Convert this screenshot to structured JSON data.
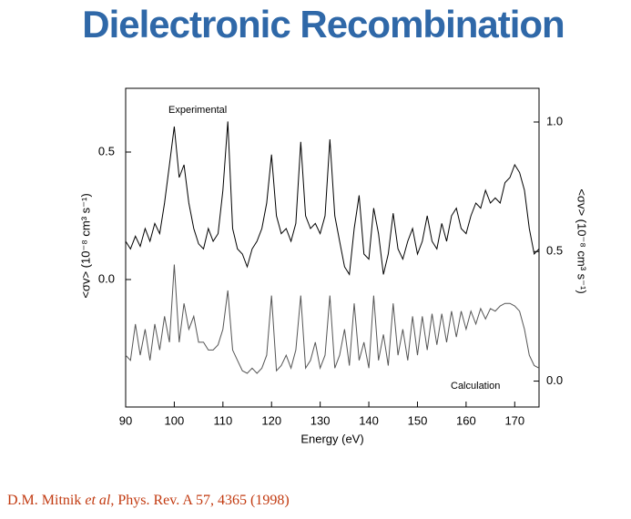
{
  "title": "Dielectronic Recombination",
  "citation": [
    "D.M. Mitnik ",
    "et al",
    ", Phys. Rev. A 57, 4365 (1998)"
  ],
  "chart_data": {
    "type": "line",
    "x_label": "Energy (eV)",
    "y_label": "<σv> (10⁻⁸ cm³ s⁻¹)",
    "y2_label": "<σv> (10⁻⁸ cm³ s⁻¹)",
    "annotations": [
      "Experimental",
      "Calculation"
    ],
    "x": [
      90,
      91,
      92,
      93,
      94,
      95,
      96,
      97,
      98,
      99,
      100,
      101,
      102,
      103,
      104,
      105,
      106,
      107,
      108,
      109,
      110,
      111,
      112,
      113,
      114,
      115,
      116,
      117,
      118,
      119,
      120,
      121,
      122,
      123,
      124,
      125,
      126,
      127,
      128,
      129,
      130,
      131,
      132,
      133,
      134,
      135,
      136,
      137,
      138,
      139,
      140,
      141,
      142,
      143,
      144,
      145,
      146,
      147,
      148,
      149,
      150,
      151,
      152,
      153,
      154,
      155,
      156,
      157,
      158,
      159,
      160,
      161,
      162,
      163,
      164,
      165,
      166,
      167,
      168,
      169,
      170,
      171,
      172,
      173,
      174,
      175
    ],
    "series": [
      {
        "color": "#000000",
        "values": [
          0.15,
          0.12,
          0.17,
          0.13,
          0.2,
          0.15,
          0.22,
          0.18,
          0.3,
          0.45,
          0.6,
          0.4,
          0.45,
          0.3,
          0.2,
          0.14,
          0.12,
          0.2,
          0.15,
          0.18,
          0.35,
          0.62,
          0.2,
          0.12,
          0.1,
          0.05,
          0.12,
          0.15,
          0.2,
          0.3,
          0.49,
          0.25,
          0.18,
          0.2,
          0.15,
          0.22,
          0.54,
          0.25,
          0.2,
          0.22,
          0.18,
          0.25,
          0.55,
          0.25,
          0.15,
          0.05,
          0.02,
          0.2,
          0.33,
          0.1,
          0.08,
          0.28,
          0.18,
          0.02,
          0.1,
          0.26,
          0.12,
          0.08,
          0.15,
          0.2,
          0.1,
          0.15,
          0.25,
          0.15,
          0.12,
          0.22,
          0.15,
          0.25,
          0.28,
          0.2,
          0.18,
          0.25,
          0.3,
          0.28,
          0.35,
          0.3,
          0.32,
          0.3,
          0.38,
          0.4,
          0.45,
          0.42,
          0.35,
          0.2,
          0.1,
          0.12
        ]
      },
      {
        "color": "#555555",
        "axis": "y2",
        "values": [
          0.1,
          0.08,
          0.22,
          0.1,
          0.2,
          0.08,
          0.22,
          0.12,
          0.25,
          0.15,
          0.45,
          0.15,
          0.3,
          0.2,
          0.25,
          0.15,
          0.15,
          0.12,
          0.12,
          0.14,
          0.2,
          0.35,
          0.12,
          0.08,
          0.04,
          0.03,
          0.05,
          0.03,
          0.05,
          0.1,
          0.33,
          0.04,
          0.06,
          0.1,
          0.05,
          0.12,
          0.33,
          0.05,
          0.08,
          0.15,
          0.05,
          0.1,
          0.33,
          0.05,
          0.1,
          0.2,
          0.06,
          0.3,
          0.08,
          0.15,
          0.05,
          0.33,
          0.08,
          0.18,
          0.06,
          0.3,
          0.1,
          0.2,
          0.08,
          0.25,
          0.1,
          0.25,
          0.12,
          0.26,
          0.14,
          0.26,
          0.15,
          0.27,
          0.17,
          0.27,
          0.2,
          0.27,
          0.22,
          0.28,
          0.24,
          0.28,
          0.27,
          0.29,
          0.3,
          0.3,
          0.29,
          0.27,
          0.2,
          0.1,
          0.06,
          0.05
        ]
      }
    ],
    "xlim": [
      90,
      175
    ],
    "xticks": [
      90,
      100,
      110,
      120,
      130,
      140,
      150,
      160,
      170
    ],
    "ylim": [
      -0.5,
      0.75
    ],
    "yticks": [
      {
        "value": 0,
        "label": "0.0"
      },
      0.5
    ],
    "y2lim": [
      -0.1,
      1.13
    ],
    "y2ticks": [
      {
        "value": 0,
        "label": "0.0"
      },
      0.5,
      {
        "value": 1,
        "label": "1.0"
      }
    ]
  }
}
